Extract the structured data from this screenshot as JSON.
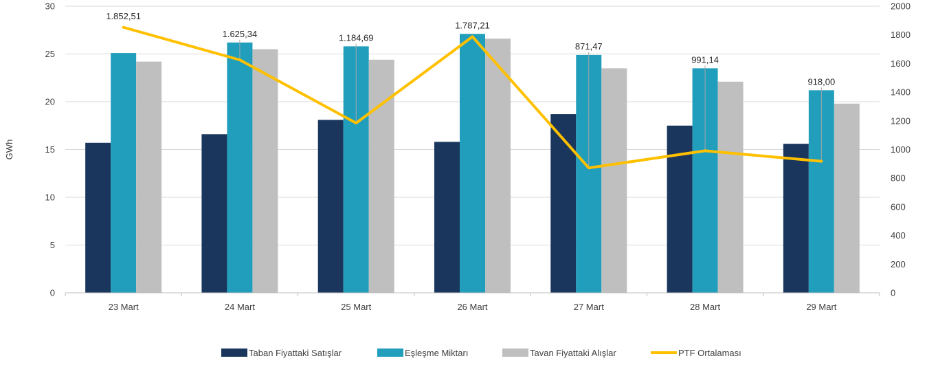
{
  "chart_data": {
    "type": "bar",
    "categories": [
      "23 Mart",
      "24 Mart",
      "25 Mart",
      "26 Mart",
      "27 Mart",
      "28 Mart",
      "29 Mart"
    ],
    "series": [
      {
        "name": "Taban Fiyattaki Satışlar",
        "type": "bar",
        "axis": "left",
        "color": "#1b365d",
        "values": [
          15.7,
          16.6,
          18.1,
          15.8,
          18.7,
          17.5,
          15.6
        ]
      },
      {
        "name": "Eşleşme Miktarı",
        "type": "bar",
        "axis": "left",
        "color": "#219ebc",
        "values": [
          25.1,
          26.2,
          25.8,
          27.1,
          24.9,
          23.5,
          21.2
        ]
      },
      {
        "name": "Tavan Fiyattaki Alışlar",
        "type": "bar",
        "axis": "left",
        "color": "#bfbfbf",
        "values": [
          24.2,
          25.5,
          24.4,
          26.6,
          23.5,
          22.1,
          19.8
        ]
      },
      {
        "name": "PTF Ortalaması",
        "type": "line",
        "axis": "right",
        "color": "#ffc000",
        "values": [
          1852.51,
          1625.34,
          1184.69,
          1787.21,
          871.47,
          991.14,
          918.0
        ]
      }
    ],
    "data_labels": [
      "1.852,51",
      "1.625,34",
      "1.184,69",
      "1.787,21",
      "871,47",
      "991,14",
      "918,00"
    ],
    "ylabel": "GWh",
    "ylim": [
      0,
      30
    ],
    "y_ticks": [
      "0",
      "5",
      "10",
      "15",
      "20",
      "25",
      "30"
    ],
    "y2lim": [
      0,
      2000
    ],
    "y2_ticks": [
      "0",
      "200",
      "400",
      "600",
      "800",
      "1000",
      "1200",
      "1400",
      "1600",
      "1800",
      "2000"
    ],
    "grid": true,
    "legend_position": "bottom"
  }
}
